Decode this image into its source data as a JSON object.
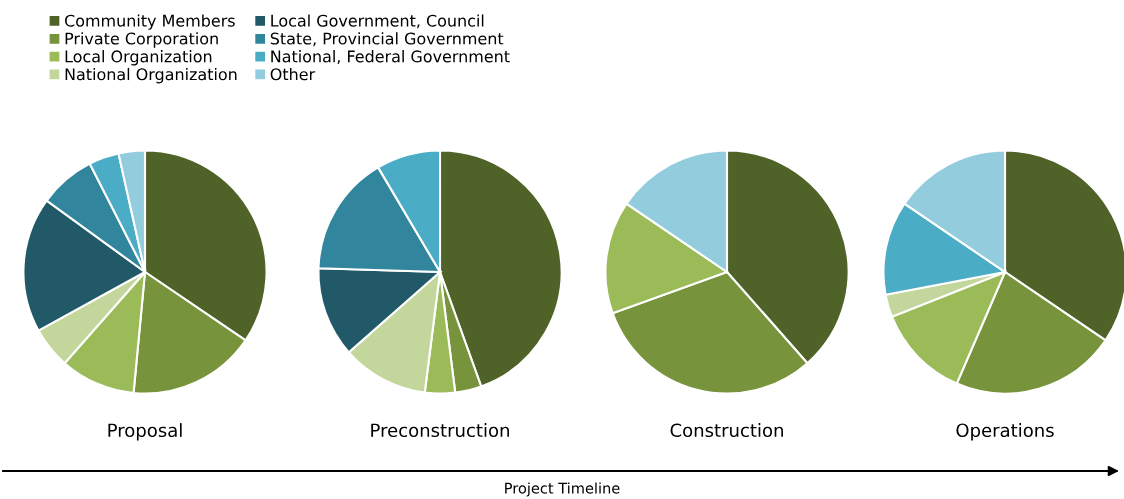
{
  "chart_data": [
    {
      "type": "pie",
      "title": "Proposal",
      "legend": "top",
      "annotations": [
        "Project Timeline"
      ],
      "categories": [
        "Community Members",
        "Private Corporation",
        "Local Organization",
        "National Organization",
        "Local Government, Council",
        "State, Provincial Government",
        "National, Federal Government",
        "Other"
      ],
      "values": [
        34.5,
        17,
        10,
        5.5,
        18,
        7.5,
        4,
        3.5
      ],
      "colors": [
        "#4f6228",
        "#77933c",
        "#9bbb59",
        "#c3d69b",
        "#215968",
        "#31859c",
        "#4bacc6",
        "#93cddd"
      ]
    },
    {
      "type": "pie",
      "title": "Preconstruction",
      "categories": [
        null,
        null,
        null,
        null,
        null,
        null,
        null,
        null
      ],
      "values": [
        44.5,
        3.5,
        4,
        11.5,
        12,
        16,
        8.5,
        0
      ],
      "colors": [
        "#4f6228",
        "#77933c",
        "#9bbb59",
        "#c3d69b",
        "#215968",
        "#31859c",
        "#4bacc6",
        "#93cddd"
      ]
    },
    {
      "type": "pie",
      "title": "Construction",
      "categories": [
        null,
        null,
        null,
        null,
        null,
        null,
        null,
        null
      ],
      "values": [
        38.5,
        31,
        15,
        0,
        0,
        0,
        0,
        15.5
      ],
      "colors": [
        "#4f6228",
        "#77933c",
        "#9bbb59",
        "#c3d69b",
        "#215968",
        "#31859c",
        "#4bacc6",
        "#93cddd"
      ]
    },
    {
      "type": "pie",
      "title": "Operations",
      "categories": [
        null,
        null,
        null,
        null,
        null,
        null,
        null,
        null
      ],
      "values": [
        34.5,
        22,
        12.5,
        3,
        0,
        0,
        12.5,
        15.5
      ],
      "colors": [
        "#4f6228",
        "#77933c",
        "#9bbb59",
        "#c3d69b",
        "#215968",
        "#31859c",
        "#4bacc6",
        "#93cddd"
      ]
    }
  ]
}
